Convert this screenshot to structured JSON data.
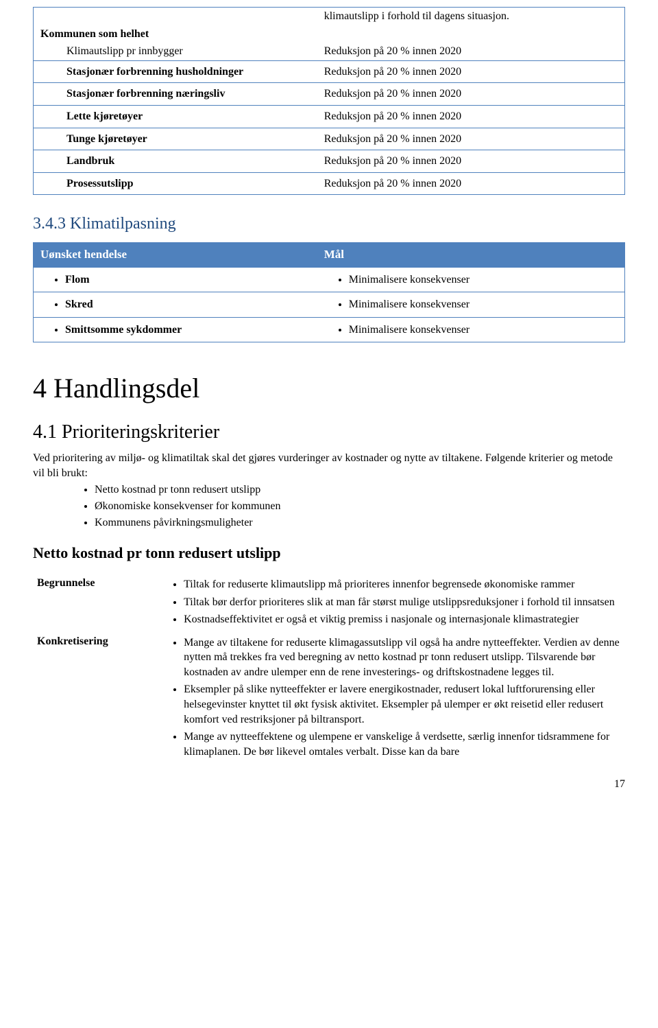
{
  "table1": {
    "context": "klimautslipp i forhold til dagens situasjon.",
    "header_bold": "Kommunen som helhet",
    "rows": [
      {
        "label": "Klimautslipp pr innbygger",
        "value": "Reduksjon på 20 % innen 2020",
        "indent": true
      },
      {
        "label": "Stasjonær forbrenning husholdninger",
        "value": "Reduksjon på 20 % innen 2020",
        "indent": true
      },
      {
        "label": "Stasjonær forbrenning næringsliv",
        "value": "Reduksjon på 20 % innen 2020",
        "indent": true
      },
      {
        "label": "Lette kjøretøyer",
        "value": "Reduksjon på 20 % innen 2020",
        "indent": true
      },
      {
        "label": "Tunge kjøretøyer",
        "value": "Reduksjon på 20 % innen 2020",
        "indent": true
      },
      {
        "label": "Landbruk",
        "value": "Reduksjon på 20 % innen 2020",
        "indent": true
      },
      {
        "label": "Prosessutslipp",
        "value": "Reduksjon på 20 % innen 2020",
        "indent": true
      }
    ]
  },
  "section343": {
    "title": "3.4.3 Klimatilpasning",
    "header_left": "Uønsket hendelse",
    "header_right": "Mål",
    "rows": [
      {
        "left": "Flom",
        "right": "Minimalisere konsekvenser"
      },
      {
        "left": "Skred",
        "right": "Minimalisere konsekvenser"
      },
      {
        "left": "Smittsomme sykdommer",
        "right": "Minimalisere konsekvenser"
      }
    ]
  },
  "section4": {
    "title": "4 Handlingsdel"
  },
  "section41": {
    "title": "4.1 Prioriteringskriterier",
    "para1": "Ved prioritering av miljø- og klimatiltak skal det gjøres vurderinger av kostnader og nytte av tiltakene. Følgende kriterier og metode vil bli brukt:",
    "criteria": [
      "Netto kostnad pr tonn redusert utslipp",
      "Økonomiske konsekvenser for kommunen",
      "Kommunens påvirkningsmuligheter"
    ],
    "sub_heading": "Netto kostnad pr tonn redusert utslipp",
    "begrunnelse_label": "Begrunnelse",
    "konkretisering_label": "Konkretisering",
    "begrunnelse": [
      "Tiltak for reduserte klimautslipp må prioriteres innenfor begrensede økonomiske rammer",
      "Tiltak bør derfor prioriteres slik at man får størst mulige utslippsreduksjoner i forhold til innsatsen",
      "Kostnadseffektivitet er også et viktig premiss i nasjonale og internasjonale klimastrategier"
    ],
    "konkretisering": [
      "Mange av tiltakene for reduserte klimagassutslipp vil også ha andre nytteeffekter. Verdien av denne nytten må trekkes fra ved beregning av netto kostnad pr tonn redusert utslipp. Tilsvarende bør kostnaden av andre ulemper enn de rene investerings- og driftskostnadene legges til.",
      "Eksempler på slike nytteeffekter er lavere energikostnader, redusert lokal luftforurensing eller helsegevinster knyttet til økt fysisk aktivitet. Eksempler på ulemper er økt reisetid eller redusert komfort ved restriksjoner på biltransport.",
      "Mange av nytteeffektene og ulempene er vanskelige å verdsette, særlig innenfor tidsrammene for klimaplanen. De bør likevel omtales verbalt. Disse kan da bare"
    ]
  },
  "page_number": "17"
}
